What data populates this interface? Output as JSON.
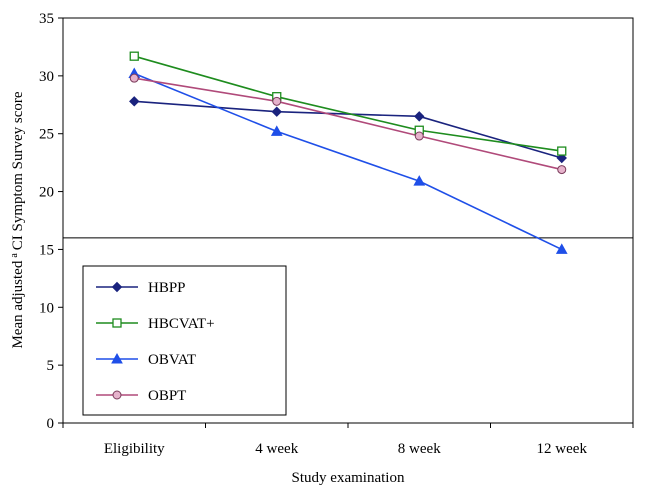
{
  "chart_data": {
    "type": "line",
    "categories": [
      "Eligibility",
      "4 week",
      "8 week",
      "12 week"
    ],
    "xlabel": "Study examination",
    "ylabel": {
      "prefix": "Mean adjusted",
      "superscript": "a",
      "suffix": "CI Symptom Survey score"
    },
    "ylim": [
      0,
      35
    ],
    "yticks": [
      0,
      5,
      10,
      15,
      20,
      25,
      30,
      35
    ],
    "reference_line_y": 16,
    "grid": false,
    "legend_position": "left",
    "series": [
      {
        "name": "HBPP",
        "marker": "diamond",
        "color": "#1a237e",
        "values": [
          27.8,
          26.9,
          26.5,
          22.9
        ]
      },
      {
        "name": "HBCVAT+",
        "marker": "square-open",
        "color": "#1e8c1e",
        "values": [
          31.7,
          28.2,
          25.3,
          23.5
        ]
      },
      {
        "name": "OBVAT",
        "marker": "triangle",
        "color": "#1f4fe8",
        "values": [
          30.2,
          25.2,
          20.9,
          15.0
        ]
      },
      {
        "name": "OBPT",
        "marker": "circle",
        "color": "#b04a7a",
        "values": [
          29.8,
          27.8,
          24.8,
          21.9
        ]
      }
    ]
  }
}
